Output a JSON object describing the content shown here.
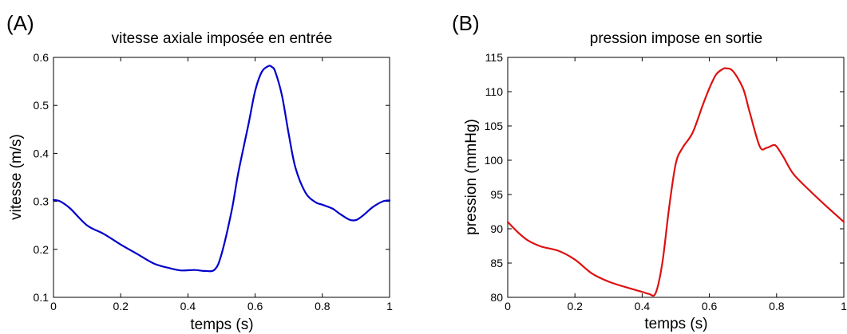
{
  "chart_data": [
    {
      "type": "line",
      "panel_label": "(A)",
      "title": "vitesse axiale imposée en entrée",
      "xlabel": "temps (s)",
      "ylabel": "vitesse (m/s)",
      "xlim": [
        0,
        1
      ],
      "ylim": [
        0.1,
        0.6
      ],
      "xticks": [
        0,
        0.2,
        0.4,
        0.6,
        0.8,
        1
      ],
      "xtick_labels": [
        "0",
        "0.2",
        "0.4",
        "0.6",
        "0.8",
        "1"
      ],
      "yticks": [
        0.1,
        0.2,
        0.3,
        0.4,
        0.5,
        0.6
      ],
      "ytick_labels": [
        "0.1",
        "0.2",
        "0.3",
        "0.4",
        "0.5",
        "0.6"
      ],
      "grid": false,
      "series": [
        {
          "color": "#0000cc",
          "x": [
            0,
            0.02,
            0.05,
            0.1,
            0.15,
            0.2,
            0.25,
            0.3,
            0.35,
            0.38,
            0.42,
            0.45,
            0.48,
            0.5,
            0.53,
            0.55,
            0.58,
            0.6,
            0.62,
            0.64,
            0.65,
            0.66,
            0.68,
            0.7,
            0.72,
            0.75,
            0.78,
            0.8,
            0.83,
            0.85,
            0.88,
            0.9,
            0.92,
            0.95,
            0.98,
            1
          ],
          "y": [
            0.303,
            0.3,
            0.285,
            0.25,
            0.232,
            0.21,
            0.19,
            0.17,
            0.16,
            0.156,
            0.157,
            0.155,
            0.158,
            0.19,
            0.28,
            0.36,
            0.46,
            0.53,
            0.57,
            0.582,
            0.58,
            0.57,
            0.52,
            0.44,
            0.37,
            0.318,
            0.298,
            0.293,
            0.285,
            0.275,
            0.262,
            0.261,
            0.27,
            0.288,
            0.3,
            0.302
          ]
        }
      ]
    },
    {
      "type": "line",
      "panel_label": "(B)",
      "title": "pression impose en sortie",
      "xlabel": "temps (s)",
      "ylabel": "pression (mmHg)",
      "xlim": [
        0,
        1
      ],
      "ylim": [
        80,
        115
      ],
      "xticks": [
        0,
        0.2,
        0.4,
        0.6,
        0.8,
        1
      ],
      "xtick_labels": [
        "0",
        "0.2",
        "0.4",
        "0.6",
        "0.8",
        "1"
      ],
      "yticks": [
        80,
        85,
        90,
        95,
        100,
        105,
        110,
        115
      ],
      "ytick_labels": [
        "80",
        "85",
        "90",
        "95",
        "100",
        "105",
        "110",
        "115"
      ],
      "grid": false,
      "series": [
        {
          "color": "#dd1111",
          "x": [
            0,
            0.03,
            0.06,
            0.1,
            0.15,
            0.2,
            0.25,
            0.3,
            0.35,
            0.4,
            0.42,
            0.44,
            0.46,
            0.48,
            0.5,
            0.52,
            0.55,
            0.58,
            0.6,
            0.62,
            0.64,
            0.65,
            0.67,
            0.7,
            0.72,
            0.75,
            0.77,
            0.79,
            0.8,
            0.82,
            0.85,
            0.9,
            0.95,
            1
          ],
          "y": [
            91,
            89.5,
            88.3,
            87.4,
            86.8,
            85.5,
            83.5,
            82.3,
            81.5,
            80.8,
            80.5,
            80.6,
            85,
            93,
            99.5,
            101.8,
            104,
            108,
            110.5,
            112.5,
            113.3,
            113.4,
            113,
            110.5,
            107,
            102,
            101.8,
            102.2,
            102,
            100.5,
            98,
            95.5,
            93.2,
            91
          ]
        }
      ]
    }
  ]
}
